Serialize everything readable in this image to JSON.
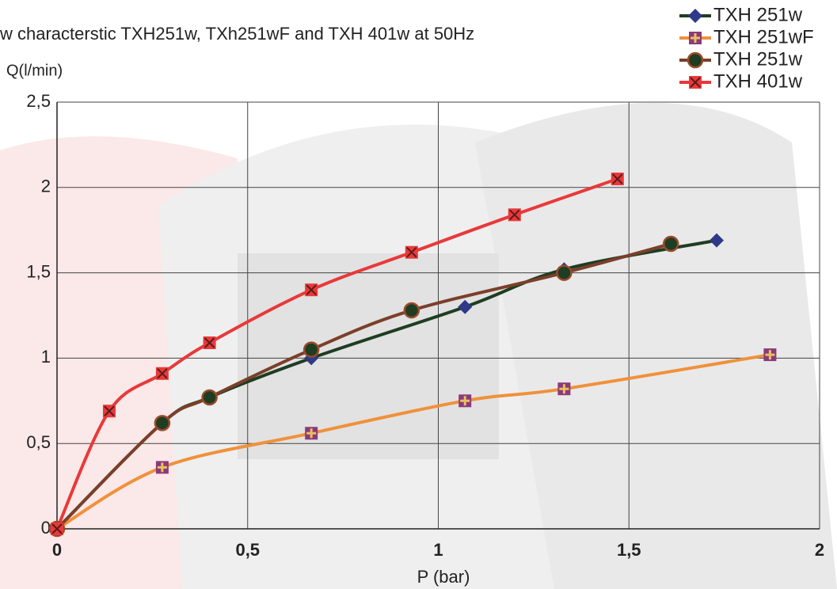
{
  "chart_data": {
    "type": "line",
    "title": "w characterstic TXH251w, TXh251wF and TXH 401w at 50Hz",
    "y_label": "Q(l/min)",
    "x_label": "P (bar)",
    "xlim": [
      0,
      2
    ],
    "ylim": [
      0,
      2.5
    ],
    "xticks": [
      0,
      {
        "value": 0.5,
        "label": "0,5"
      },
      1,
      {
        "value": 1.5,
        "label": "1,5"
      },
      2
    ],
    "yticks": [
      0,
      {
        "value": 0.5,
        "label": "0,5"
      },
      1,
      {
        "value": 1.5,
        "label": "1,5"
      },
      2,
      {
        "value": 2.5,
        "label": "2,5"
      }
    ],
    "grid": true,
    "legend": "top-right",
    "series": [
      {
        "name": "TXH 251w",
        "color": "#1e3d22",
        "marker": "diamond",
        "marker_color": "#2e3a87",
        "x": [
          0,
          0.276,
          0.4,
          0.667,
          1.07,
          1.33,
          1.73
        ],
        "values": [
          0,
          0.62,
          0.77,
          1.0,
          1.3,
          1.52,
          1.69
        ]
      },
      {
        "name": "TXH 251wF",
        "color": "#f0913a",
        "marker": "square-plus",
        "marker_color": "#8b3a7a",
        "x": [
          0,
          0.276,
          0.667,
          1.07,
          1.33,
          1.87
        ],
        "values": [
          0,
          0.36,
          0.56,
          0.75,
          0.82,
          1.02
        ]
      },
      {
        "name": "TXH 251w",
        "color": "#7b3f2a",
        "marker": "circle",
        "marker_color": "#1e3d22",
        "x": [
          0,
          0.276,
          0.4,
          0.667,
          0.93,
          1.33,
          1.61
        ],
        "values": [
          0,
          0.62,
          0.77,
          1.05,
          1.28,
          1.5,
          1.67
        ]
      },
      {
        "name": "TXH 401w",
        "color": "#e8393a",
        "marker": "x-square",
        "marker_color": "#e8393a",
        "x": [
          0,
          0.137,
          0.276,
          0.4,
          0.667,
          0.93,
          1.2,
          1.47
        ],
        "values": [
          0,
          0.69,
          0.91,
          1.09,
          1.4,
          1.62,
          1.84,
          2.05
        ]
      }
    ]
  }
}
